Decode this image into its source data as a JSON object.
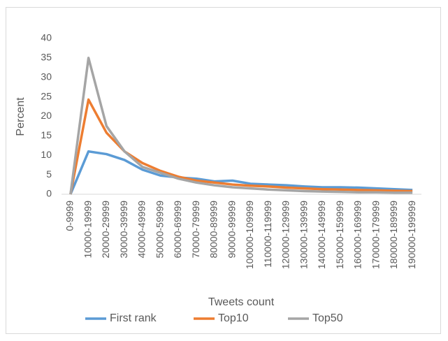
{
  "chart_data": {
    "type": "line",
    "x_label": "Tweets count",
    "y_label": "Percent",
    "categories": [
      "0-9999",
      "10000-19999",
      "20000-29999",
      "30000-39999",
      "40000-49999",
      "50000-59999",
      "60000-69999",
      "70000-79999",
      "80000-89999",
      "90000-99999",
      "100000-109999",
      "110000-119999",
      "120000-129999",
      "130000-139999",
      "140000-149999",
      "150000-159999",
      "160000-169999",
      "170000-179999",
      "180000-189999",
      "190000-199999"
    ],
    "series": [
      {
        "name": "First rank",
        "color": "#5b9bd5",
        "values": [
          0,
          11,
          10.3,
          8.8,
          6.3,
          4.8,
          4.3,
          4,
          3.3,
          3.5,
          2.7,
          2.5,
          2.3,
          2,
          1.8,
          1.8,
          1.7,
          1.5,
          1.3,
          1.1
        ]
      },
      {
        "name": "Top10",
        "color": "#ed7d31",
        "values": [
          0,
          24.3,
          15.8,
          11,
          8,
          6,
          4.5,
          3.5,
          3,
          2.5,
          2.2,
          2,
          1.7,
          1.5,
          1.3,
          1.2,
          1.1,
          1,
          0.9,
          0.8
        ]
      },
      {
        "name": "Top50",
        "color": "#a5a5a5",
        "values": [
          0,
          35,
          17.5,
          11,
          7,
          5.5,
          4,
          3,
          2.3,
          1.8,
          1.5,
          1.2,
          1,
          0.8,
          0.7,
          0.6,
          0.5,
          0.5,
          0.4,
          0.4
        ]
      }
    ],
    "ylim": [
      0,
      40
    ],
    "yticks": [
      0,
      5,
      10,
      15,
      20,
      25,
      30,
      35,
      40
    ],
    "grid": false,
    "legend": "bottom"
  }
}
